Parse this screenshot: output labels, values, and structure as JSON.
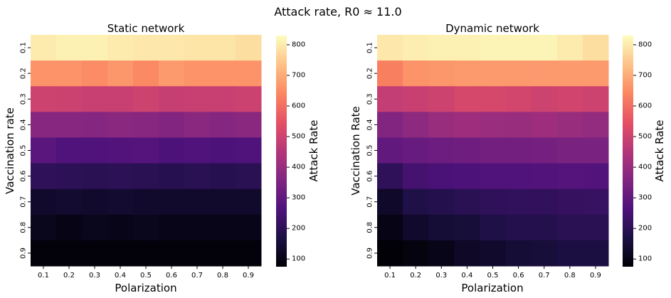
{
  "suptitle": "Attack rate, R0 ≈ 11.0",
  "colormap": "magma",
  "colorbar_label": "Attack Rate",
  "colorbar_range": [
    75,
    830
  ],
  "colorbar_ticks": [
    100,
    200,
    300,
    400,
    500,
    600,
    700,
    800
  ],
  "chart_data": [
    {
      "type": "heatmap",
      "title": "Static network",
      "xlabel": "Polarization",
      "ylabel": "Vaccination rate",
      "x_categories": [
        "0.1",
        "0.2",
        "0.3",
        "0.4",
        "0.5",
        "0.6",
        "0.7",
        "0.8",
        "0.9"
      ],
      "y_categories": [
        "0.1",
        "0.2",
        "0.3",
        "0.4",
        "0.5",
        "0.6",
        "0.7",
        "0.8",
        "0.9"
      ],
      "values": [
        [
          800,
          810,
          810,
          800,
          795,
          795,
          790,
          790,
          780
        ],
        [
          660,
          660,
          650,
          665,
          645,
          670,
          660,
          660,
          660
        ],
        [
          500,
          495,
          490,
          490,
          500,
          485,
          490,
          490,
          495
        ],
        [
          370,
          370,
          365,
          375,
          370,
          360,
          375,
          365,
          375
        ],
        [
          285,
          265,
          265,
          270,
          275,
          260,
          265,
          260,
          265
        ],
        [
          205,
          200,
          195,
          200,
          195,
          190,
          195,
          190,
          195
        ],
        [
          135,
          140,
          135,
          140,
          135,
          135,
          135,
          135,
          135
        ],
        [
          110,
          100,
          110,
          105,
          110,
          105,
          105,
          105,
          105
        ],
        [
          85,
          85,
          85,
          85,
          85,
          85,
          85,
          85,
          85
        ]
      ],
      "colorbar_label": "Attack Rate"
    },
    {
      "type": "heatmap",
      "title": "Dynamic network",
      "xlabel": "Polarization",
      "ylabel": "Vaccination Rate",
      "x_categories": [
        "0.1",
        "0.2",
        "0.3",
        "0.4",
        "0.5",
        "0.6",
        "0.7",
        "0.8",
        "0.9"
      ],
      "y_categories": [
        "0.1",
        "0.2",
        "0.3",
        "0.4",
        "0.5",
        "0.6",
        "0.7",
        "0.8",
        "0.9"
      ],
      "values": [
        [
          795,
          805,
          810,
          810,
          815,
          815,
          815,
          800,
          780
        ],
        [
          630,
          660,
          665,
          670,
          670,
          670,
          670,
          670,
          670
        ],
        [
          480,
          490,
          500,
          515,
          515,
          510,
          500,
          505,
          500
        ],
        [
          360,
          380,
          400,
          410,
          405,
          400,
          410,
          400,
          390
        ],
        [
          300,
          310,
          320,
          325,
          330,
          330,
          335,
          345,
          345
        ],
        [
          205,
          245,
          255,
          260,
          265,
          265,
          270,
          275,
          270
        ],
        [
          130,
          175,
          185,
          195,
          205,
          210,
          210,
          215,
          220
        ],
        [
          100,
          135,
          150,
          155,
          175,
          185,
          185,
          195,
          195
        ],
        [
          80,
          90,
          105,
          125,
          135,
          150,
          155,
          165,
          165
        ]
      ],
      "colorbar_label": "Attack Rate"
    }
  ]
}
